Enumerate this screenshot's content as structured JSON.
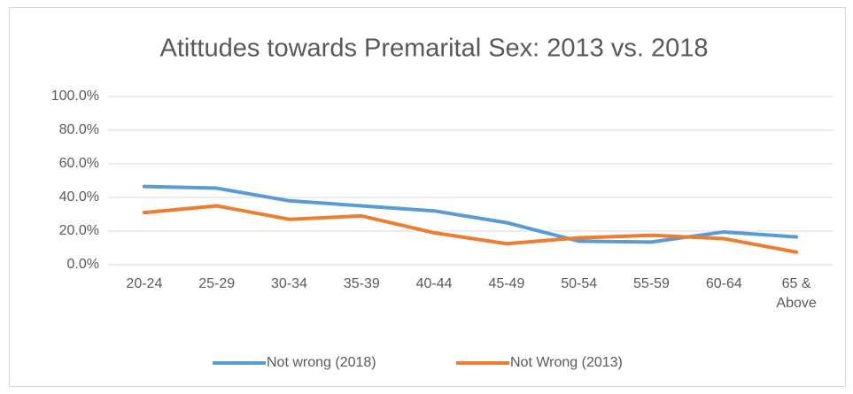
{
  "chart_data": {
    "type": "line",
    "title": "Atittudes towards Premarital Sex: 2013 vs. 2018",
    "categories": [
      "20-24",
      "25-29",
      "30-34",
      "35-39",
      "40-44",
      "45-49",
      "50-54",
      "55-59",
      "60-64",
      "65 & Above"
    ],
    "series": [
      {
        "name": "Not wrong (2018)",
        "color": "#5b9bd5",
        "values": [
          46.5,
          45.5,
          38,
          35,
          32,
          25,
          14,
          13.5,
          19.5,
          16.5
        ]
      },
      {
        "name": "Not Wrong (2013)",
        "color": "#ed7d31",
        "values": [
          31,
          35,
          27,
          29,
          19,
          12.5,
          16,
          17.5,
          15.5,
          7.5
        ]
      }
    ],
    "ylim": [
      0,
      100
    ],
    "yticks": [
      {
        "value": 0,
        "label": "0.0%"
      },
      {
        "value": 20,
        "label": "20.0%"
      },
      {
        "value": 40,
        "label": "40.0%"
      },
      {
        "value": 60,
        "label": "60.0%"
      },
      {
        "value": 80,
        "label": "80.0%"
      },
      {
        "value": 100,
        "label": "100.0%"
      }
    ],
    "grid": true,
    "legend": "bottom"
  }
}
